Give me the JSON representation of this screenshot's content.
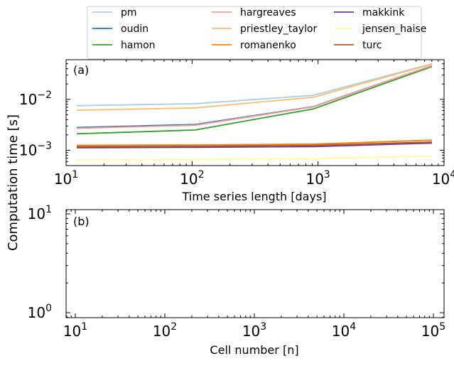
{
  "figure": {
    "ylabel": "Computation time [s]"
  },
  "legend": {
    "entries": [
      {
        "name": "pm",
        "color": "#a6cee3"
      },
      {
        "name": "oudin",
        "color": "#1f78b4"
      },
      {
        "name": "hamon",
        "color": "#33a02c"
      },
      {
        "name": "hargreaves",
        "color": "#fb9a99"
      },
      {
        "name": "priestley_taylor",
        "color": "#fdbf6f"
      },
      {
        "name": "romanenko",
        "color": "#ff7f00"
      },
      {
        "name": "makkink",
        "color": "#6a3d9a"
      },
      {
        "name": "jensen_haise",
        "color": "#ffff99"
      },
      {
        "name": "turc",
        "color": "#b15928"
      }
    ]
  },
  "chart_data": [
    {
      "type": "line",
      "panel": "(a)",
      "xlabel": "Time series length [days]",
      "ylabel": "Computation time [s]",
      "xscale": "log",
      "yscale": "log",
      "xlim": [
        10,
        10000
      ],
      "ylim": [
        0.0005,
        0.06
      ],
      "xticks": [
        {
          "base": "10",
          "exp": "1"
        },
        {
          "base": "10",
          "exp": "2"
        },
        {
          "base": "10",
          "exp": "3"
        },
        {
          "base": "10",
          "exp": "4"
        }
      ],
      "yticks": [
        {
          "base": "10",
          "exp": "−3",
          "value": 0.001
        },
        {
          "base": "10",
          "exp": "−2",
          "value": 0.01
        }
      ],
      "x": [
        10,
        100,
        1000,
        10000
      ],
      "series": [
        {
          "name": "pm",
          "color": "#a6cee3",
          "values": [
            0.0075,
            0.0082,
            0.012,
            0.05
          ]
        },
        {
          "name": "oudin",
          "color": "#1f78b4",
          "values": [
            0.0028,
            0.0032,
            0.0072,
            0.046
          ]
        },
        {
          "name": "hamon",
          "color": "#33a02c",
          "values": [
            0.0021,
            0.0025,
            0.0065,
            0.044
          ]
        },
        {
          "name": "hargreaves",
          "color": "#fb9a99",
          "values": [
            0.0027,
            0.0031,
            0.0071,
            0.046
          ]
        },
        {
          "name": "priestley_taylor",
          "color": "#fdbf6f",
          "values": [
            0.0061,
            0.0068,
            0.011,
            0.049
          ]
        },
        {
          "name": "romanenko",
          "color": "#ff7f00",
          "values": [
            0.00125,
            0.00127,
            0.00132,
            0.00158
          ]
        },
        {
          "name": "makkink",
          "color": "#6a3d9a",
          "values": [
            0.00112,
            0.00114,
            0.00118,
            0.00138
          ]
        },
        {
          "name": "jensen_haise",
          "color": "#ffff99",
          "values": [
            0.00065,
            0.00066,
            0.00069,
            0.00077
          ]
        },
        {
          "name": "turc",
          "color": "#b15928",
          "values": [
            0.00118,
            0.0012,
            0.00125,
            0.00145
          ]
        }
      ]
    },
    {
      "type": "line",
      "panel": "(b)",
      "xlabel": "Cell number [n]",
      "xscale": "log",
      "yscale": "log",
      "xlim": [
        10,
        100000
      ],
      "ylim": [
        1,
        10
      ],
      "xticks": [
        {
          "base": "10",
          "exp": "1"
        },
        {
          "base": "10",
          "exp": "2"
        },
        {
          "base": "10",
          "exp": "3"
        },
        {
          "base": "10",
          "exp": "4"
        },
        {
          "base": "10",
          "exp": "5"
        }
      ],
      "yticks": [
        {
          "base": "10",
          "exp": "0",
          "value": 1
        },
        {
          "base": "10",
          "exp": "1",
          "value": 10
        }
      ],
      "series": []
    }
  ]
}
